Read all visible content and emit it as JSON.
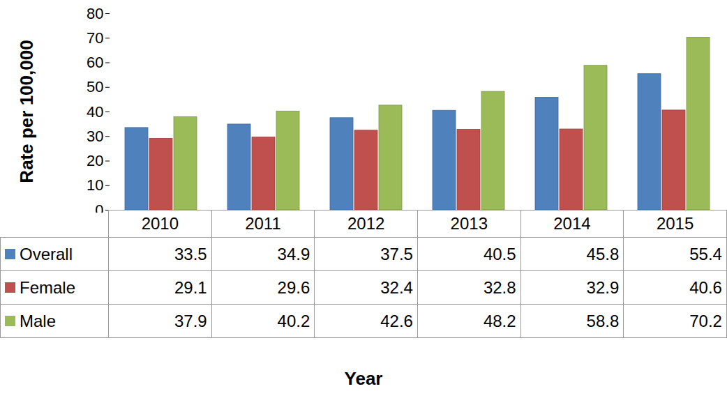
{
  "chart_data": {
    "type": "bar",
    "y_label": "Rate per 100,000",
    "x_label": "Year",
    "categories": [
      "2010",
      "2011",
      "2012",
      "2013",
      "2014",
      "2015"
    ],
    "series": [
      {
        "name": "Overall",
        "color": "#4f81bd",
        "values": [
          33.5,
          34.9,
          37.5,
          40.5,
          45.8,
          55.4
        ]
      },
      {
        "name": "Female",
        "color": "#c0504d",
        "values": [
          29.1,
          29.6,
          32.4,
          32.8,
          32.9,
          40.6
        ]
      },
      {
        "name": "Male",
        "color": "#9bbb59",
        "values": [
          37.9,
          40.2,
          42.6,
          48.2,
          58.8,
          70.2
        ]
      }
    ],
    "ylim": [
      0,
      80
    ],
    "yticks": [
      0,
      10,
      20,
      30,
      40,
      50,
      60,
      70,
      80
    ],
    "grid": false
  }
}
